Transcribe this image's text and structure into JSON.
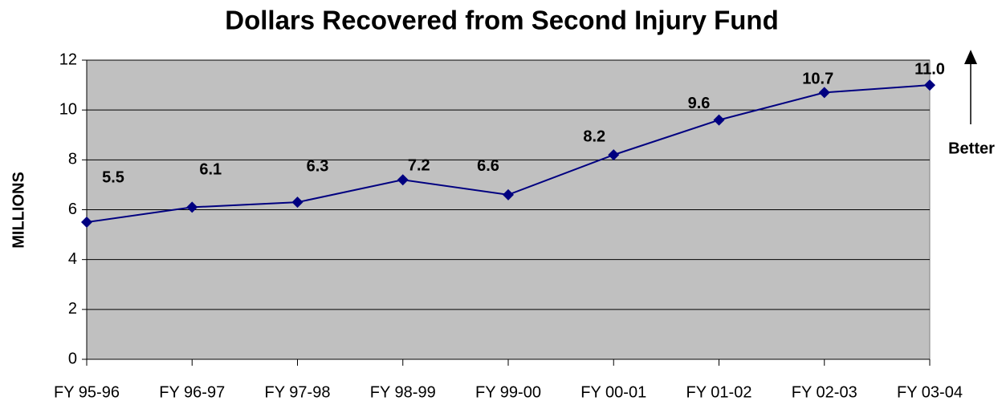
{
  "chart_data": {
    "type": "line",
    "title": "Dollars Recovered from Second Injury Fund",
    "y_label": "MILLIONS",
    "categories": [
      "FY 95-96",
      "FY 96-97",
      "FY 97-98",
      "FY 98-99",
      "FY 99-00",
      "FY 00-01",
      "FY 01-02",
      "FY 02-03",
      "FY 03-04"
    ],
    "values": [
      5.5,
      6.1,
      6.3,
      7.2,
      6.6,
      8.2,
      9.6,
      10.7,
      11.0
    ],
    "value_labels": [
      "5.5",
      "6.1",
      "6.3",
      "7.2",
      "6.6",
      "8.2",
      "9.6",
      "10.7",
      "11.0"
    ],
    "color": "#000080",
    "ylim": [
      0,
      12
    ],
    "yticks": [
      0,
      2,
      4,
      6,
      8,
      10,
      12
    ],
    "grid": true,
    "annotation": "Better"
  }
}
